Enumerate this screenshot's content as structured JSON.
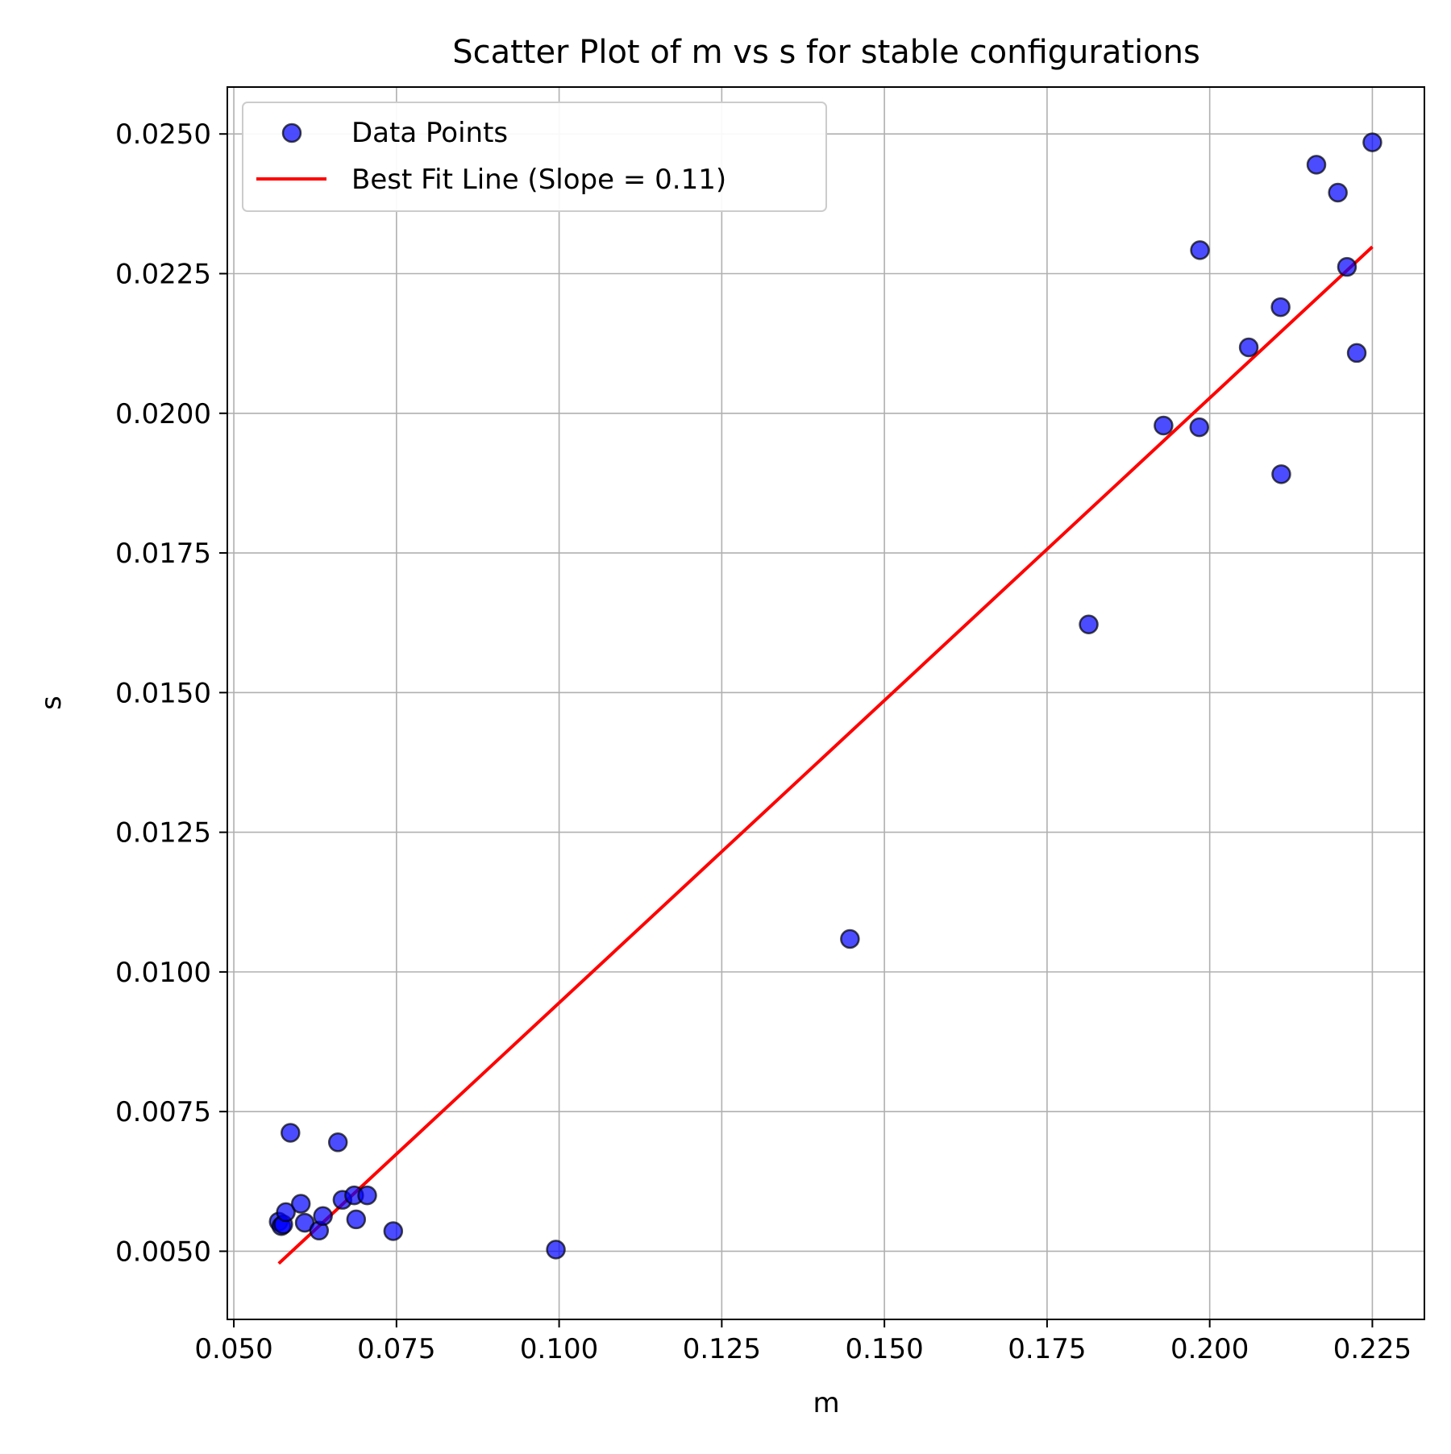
{
  "chart_data": {
    "type": "scatter",
    "title": "Scatter Plot of m vs s for stable configurations",
    "xlabel": "m",
    "ylabel": "s",
    "xlim": [
      0.049,
      0.233
    ],
    "ylim": [
      0.00378,
      0.02584
    ],
    "xticks": [
      {
        "value": 0.05,
        "label": "0.050"
      },
      {
        "value": 0.075,
        "label": "0.075"
      },
      {
        "value": 0.1,
        "label": "0.100"
      },
      {
        "value": 0.125,
        "label": "0.125"
      },
      {
        "value": 0.15,
        "label": "0.150"
      },
      {
        "value": 0.175,
        "label": "0.175"
      },
      {
        "value": 0.2,
        "label": "0.200"
      },
      {
        "value": 0.225,
        "label": "0.225"
      }
    ],
    "yticks": [
      {
        "value": 0.005,
        "label": "0.0050"
      },
      {
        "value": 0.0075,
        "label": "0.0075"
      },
      {
        "value": 0.01,
        "label": "0.0100"
      },
      {
        "value": 0.0125,
        "label": "0.0125"
      },
      {
        "value": 0.015,
        "label": "0.0150"
      },
      {
        "value": 0.0175,
        "label": "0.0175"
      },
      {
        "value": 0.02,
        "label": "0.0200"
      },
      {
        "value": 0.0225,
        "label": "0.0225"
      },
      {
        "value": 0.025,
        "label": "0.0250"
      }
    ],
    "grid": true,
    "legend_position": "upper-left",
    "series": [
      {
        "name": "Data Points",
        "kind": "scatter",
        "color": "#0000ff",
        "edge_color": "#000000",
        "points": [
          {
            "x": 0.0569,
            "y": 0.00553
          },
          {
            "x": 0.0573,
            "y": 0.00545
          },
          {
            "x": 0.0576,
            "y": 0.00548
          },
          {
            "x": 0.058,
            "y": 0.0057
          },
          {
            "x": 0.0587,
            "y": 0.00712
          },
          {
            "x": 0.0603,
            "y": 0.00585
          },
          {
            "x": 0.0609,
            "y": 0.00551
          },
          {
            "x": 0.0631,
            "y": 0.00537
          },
          {
            "x": 0.0637,
            "y": 0.00563
          },
          {
            "x": 0.066,
            "y": 0.00695
          },
          {
            "x": 0.0667,
            "y": 0.00592
          },
          {
            "x": 0.0685,
            "y": 0.006
          },
          {
            "x": 0.0688,
            "y": 0.00557
          },
          {
            "x": 0.0705,
            "y": 0.006
          },
          {
            "x": 0.0745,
            "y": 0.00536
          },
          {
            "x": 0.0995,
            "y": 0.00503
          },
          {
            "x": 0.1447,
            "y": 0.01059
          },
          {
            "x": 0.1814,
            "y": 0.01622
          },
          {
            "x": 0.1929,
            "y": 0.01978
          },
          {
            "x": 0.1985,
            "y": 0.02292
          },
          {
            "x": 0.1984,
            "y": 0.01975
          },
          {
            "x": 0.206,
            "y": 0.02118
          },
          {
            "x": 0.2109,
            "y": 0.0219
          },
          {
            "x": 0.211,
            "y": 0.01891
          },
          {
            "x": 0.2164,
            "y": 0.02445
          },
          {
            "x": 0.2197,
            "y": 0.02395
          },
          {
            "x": 0.2211,
            "y": 0.02262
          },
          {
            "x": 0.2226,
            "y": 0.02108
          },
          {
            "x": 0.225,
            "y": 0.02485
          }
        ]
      },
      {
        "name": "Best Fit Line (Slope = 0.11)",
        "kind": "line",
        "color": "#ff0000",
        "points": [
          {
            "x": 0.0569,
            "y": 0.00478
          },
          {
            "x": 0.225,
            "y": 0.02298
          }
        ]
      }
    ]
  }
}
